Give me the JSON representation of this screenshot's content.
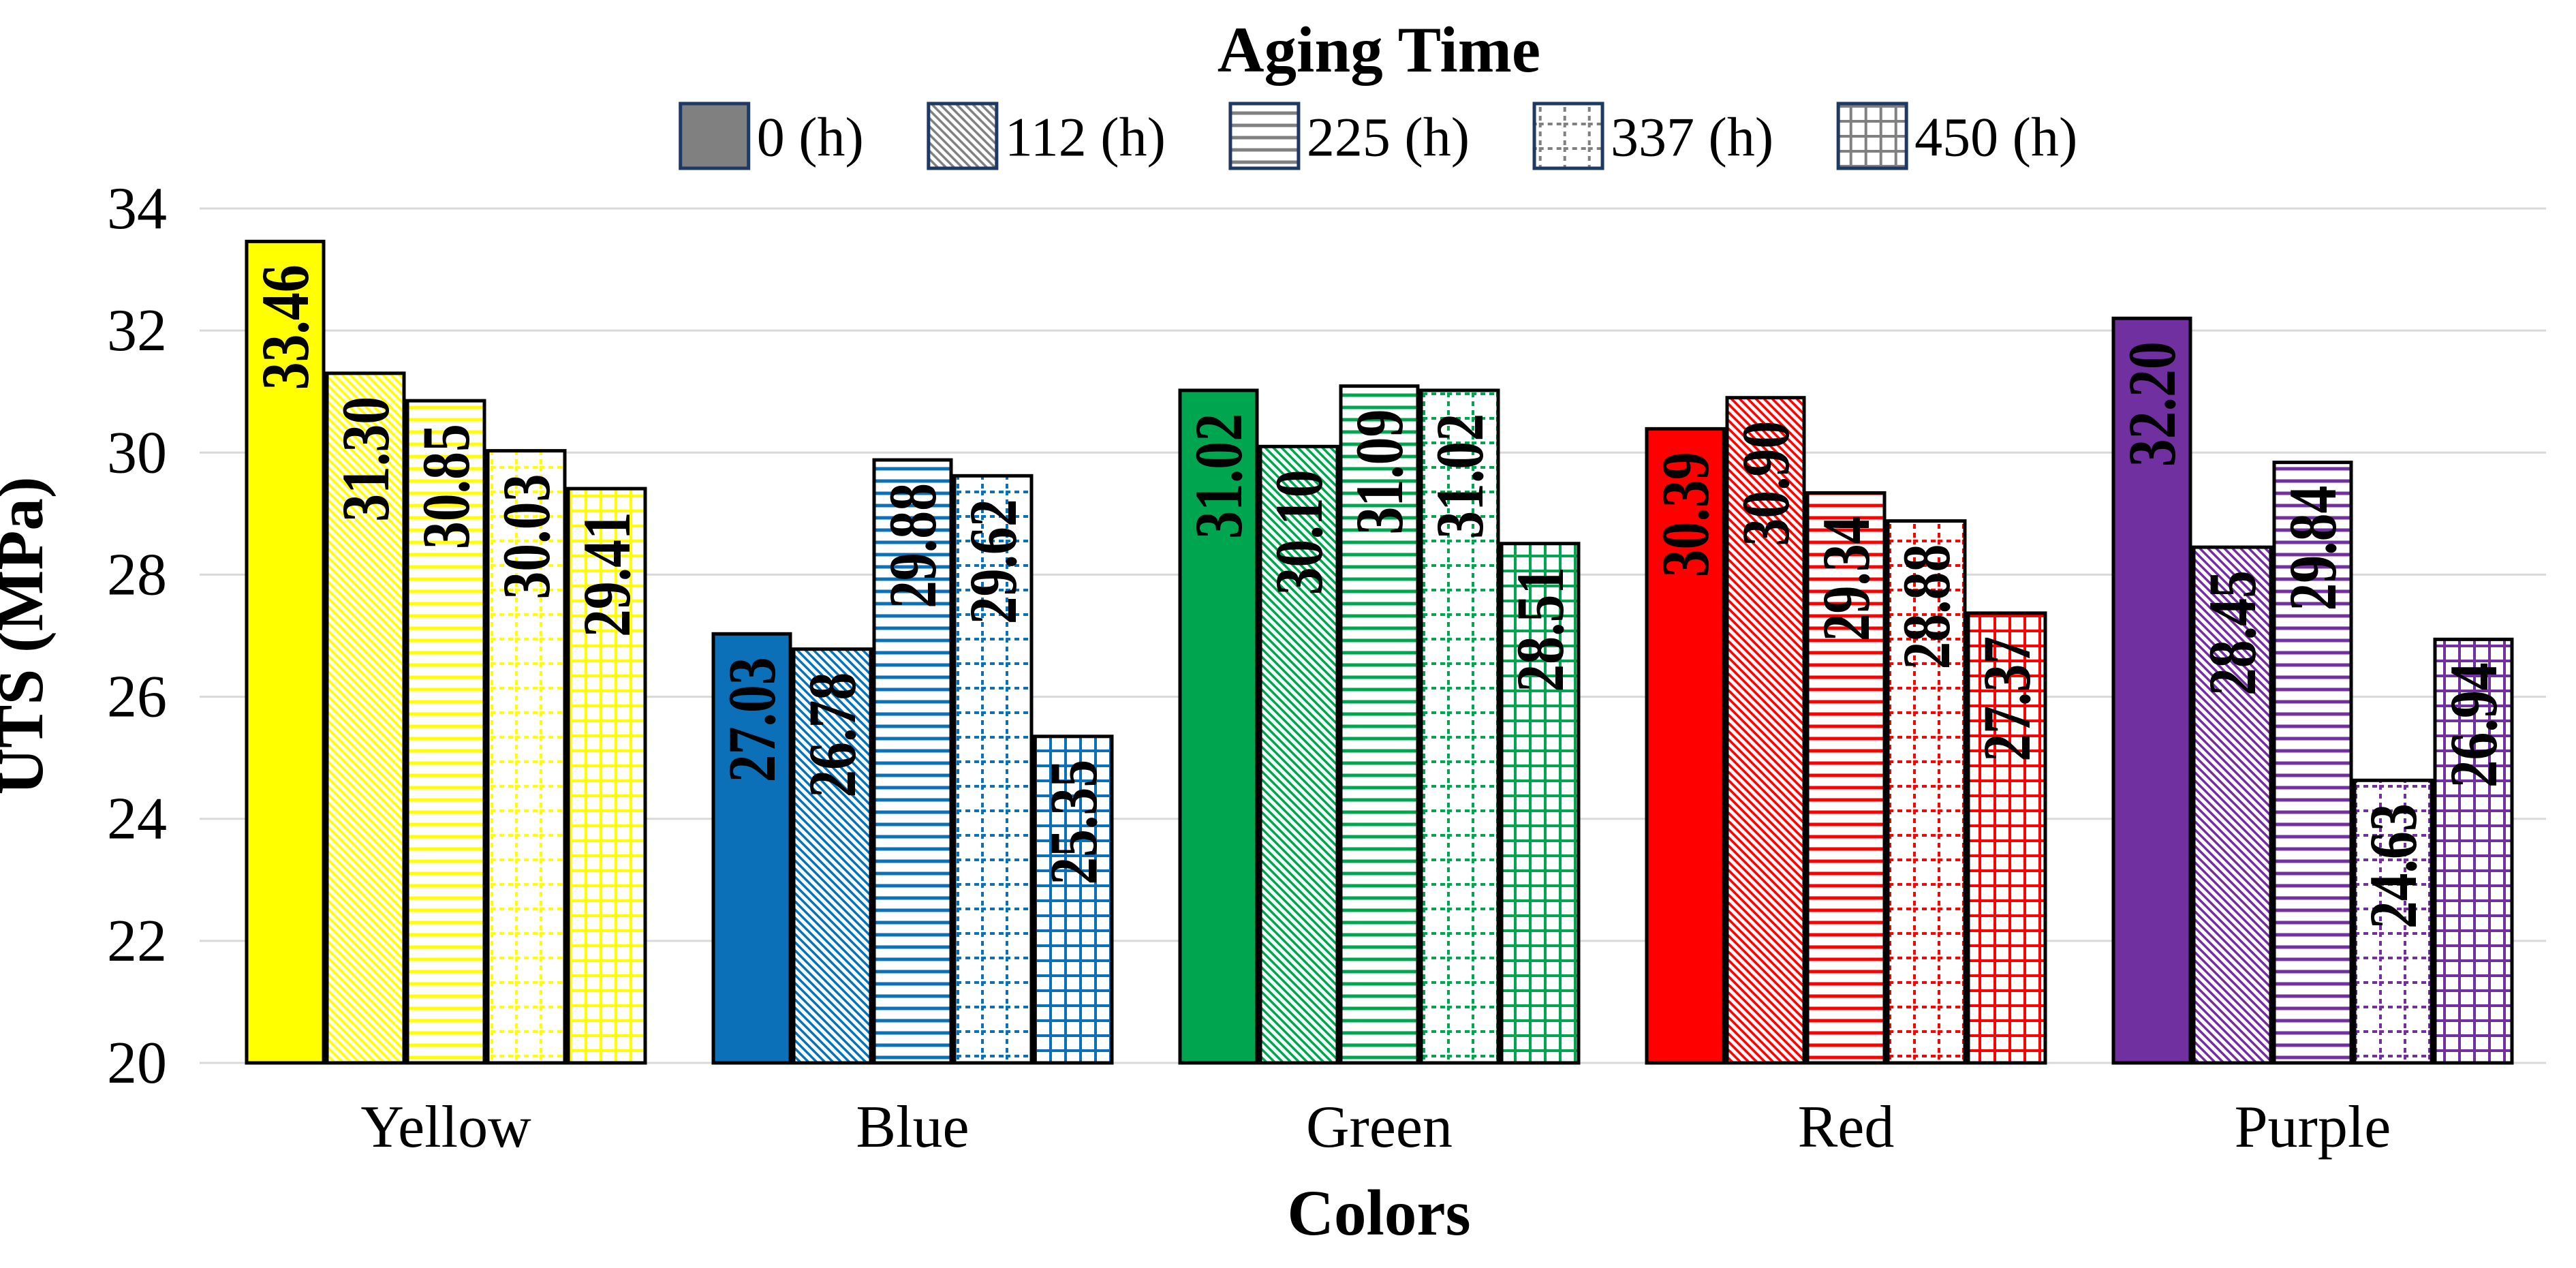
{
  "chart_data": {
    "type": "bar",
    "title": "Aging Time",
    "xlabel": "Colors",
    "ylabel": "UTS (MPa)",
    "ylim": [
      20,
      34
    ],
    "yticks": [
      34,
      32,
      30,
      28,
      26,
      24,
      22,
      20
    ],
    "grid": true,
    "legend_position": "top",
    "categories": [
      "Yellow",
      "Blue",
      "Green",
      "Red",
      "Purple"
    ],
    "category_colors": [
      "#FFFF00",
      "#0B70B8",
      "#00A550",
      "#FF0000",
      "#7030A0"
    ],
    "series": [
      {
        "name": "0 (h)",
        "pattern": "solid",
        "values": [
          33.46,
          27.03,
          31.02,
          30.39,
          32.2
        ]
      },
      {
        "name": "112 (h)",
        "pattern": "diagonal-hatch",
        "values": [
          31.3,
          26.78,
          30.1,
          30.9,
          28.45
        ]
      },
      {
        "name": "225 (h)",
        "pattern": "horizontal-lines",
        "values": [
          30.85,
          29.88,
          31.09,
          29.34,
          29.84
        ]
      },
      {
        "name": "337 (h)",
        "pattern": "dotted-grid",
        "values": [
          30.03,
          29.62,
          31.02,
          28.88,
          24.63
        ]
      },
      {
        "name": "450 (h)",
        "pattern": "fine-grid",
        "values": [
          29.41,
          25.35,
          28.51,
          27.37,
          26.94
        ]
      }
    ],
    "value_label_decimals": 2,
    "legend_swatch_fill": "#808080",
    "legend_swatch_border": "#1F3864",
    "gridline_color": "#D9D9D9",
    "text_color": "#000000",
    "background_color": "#FFFFFF"
  }
}
